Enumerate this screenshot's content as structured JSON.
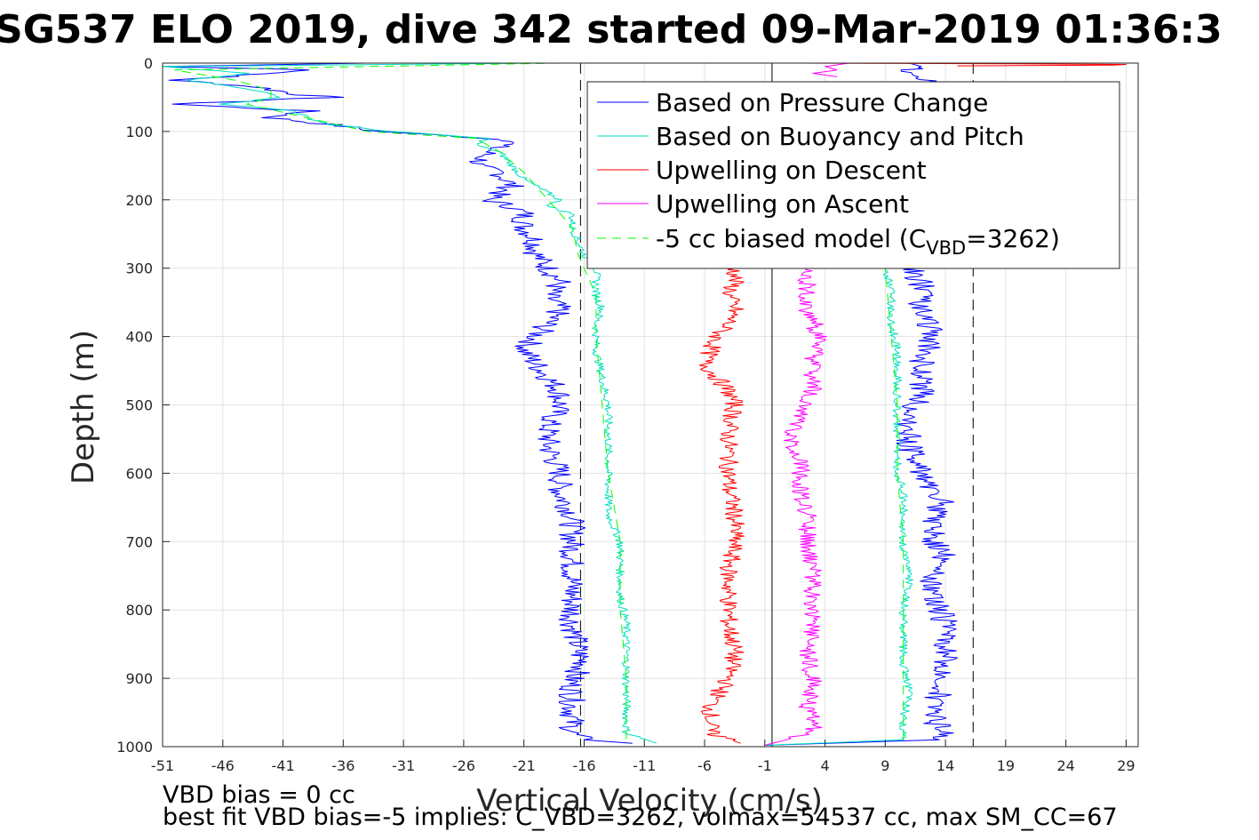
{
  "figure": {
    "title": "SG537 ELO 2019, dive 342 started 09-Mar-2019 01:36:3",
    "footer_line1": "VBD bias = 0 cc",
    "footer_line2": "best fit VBD bias=-5 implies: C_VBD=3262, volmax=54537 cc, max SM_CC=67"
  },
  "legend": {
    "placement": "top-right",
    "entries": [
      {
        "label": "Based on Pressure Change",
        "color": "#0000ff"
      },
      {
        "label": "Based on Buoyancy and Pitch",
        "color": "#00e0c0"
      },
      {
        "label": "Upwelling on Descent",
        "color": "#ff0000"
      },
      {
        "label": "Upwelling on Ascent",
        "color": "#ff00ff"
      },
      {
        "label_main": "-5 cc biased model (C",
        "label_sub": "VBD",
        "label_end": "=3262)",
        "color": "#00ff00",
        "dashed": true
      }
    ]
  },
  "chart_data": {
    "type": "line",
    "xlabel": "Vertical Velocity (cm/s)",
    "ylabel": "Depth (m)",
    "xlim": [
      -51,
      30
    ],
    "ylim": [
      0,
      1000
    ],
    "y_reversed": true,
    "grid": true,
    "xticks": [
      -51,
      -46,
      -41,
      -36,
      -31,
      -26,
      -21,
      -16,
      -11,
      -6,
      -1,
      4,
      9,
      14,
      19,
      24,
      29
    ],
    "yticks": [
      0,
      100,
      200,
      300,
      400,
      500,
      600,
      700,
      800,
      900,
      1000
    ],
    "vertical_lines": [
      {
        "x": -16.3,
        "style": "dashed",
        "color": "#000000"
      },
      {
        "x": -0.4,
        "style": "solid",
        "color": "#000000"
      },
      {
        "x": 16.3,
        "style": "dashed",
        "color": "#000000"
      }
    ],
    "series": [
      {
        "name": "Based on Pressure Change",
        "color": "#0000ff",
        "role": "descent",
        "depth": [
          0,
          5,
          10,
          25,
          35,
          45,
          50,
          60,
          70,
          80,
          90,
          100,
          110,
          115,
          120,
          130,
          150,
          160,
          180,
          200,
          210,
          220,
          240,
          260,
          280,
          300,
          320,
          340,
          360,
          380,
          400,
          420,
          440,
          460,
          480,
          500,
          530,
          560,
          600,
          630,
          660,
          700,
          740,
          780,
          820,
          860,
          880,
          900,
          940,
          980,
          990,
          995
        ],
        "velocity": [
          -34,
          -51,
          -38,
          -50,
          -43,
          -40,
          -37,
          -50,
          -39,
          -42,
          -37,
          -33,
          -24,
          -21,
          -23,
          -24,
          -25,
          -23,
          -22,
          -24,
          -22,
          -21,
          -21,
          -20,
          -20,
          -19,
          -18,
          -19,
          -18,
          -19,
          -20,
          -21,
          -20,
          -19,
          -18,
          -18,
          -19,
          -19,
          -18,
          -18,
          -17,
          -17,
          -17,
          -17,
          -17,
          -16.5,
          -16,
          -17,
          -17,
          -17,
          -16,
          -12
        ]
      },
      {
        "name": "Based on Pressure Change",
        "color": "#0000ff",
        "role": "ascent",
        "depth": [
          998,
          990,
          980,
          960,
          940,
          900,
          860,
          820,
          780,
          740,
          735,
          700,
          660,
          640,
          630,
          600,
          560,
          520,
          480,
          440,
          400,
          360,
          320,
          300,
          290,
          280,
          260,
          240,
          220,
          200,
          180,
          160,
          140,
          120,
          100,
          80,
          60,
          40,
          30,
          20,
          10,
          5,
          0
        ],
        "velocity": [
          -1,
          13.5,
          14,
          13,
          13,
          14,
          14,
          14,
          13,
          13,
          14.5,
          13,
          13,
          14,
          13,
          12,
          11,
          11,
          12,
          12,
          13,
          12,
          12,
          11,
          11,
          12,
          12,
          12,
          11,
          12,
          11,
          11,
          11,
          12,
          12,
          11,
          11,
          11,
          12,
          12.5,
          11,
          12,
          11
        ]
      },
      {
        "name": "Based on Buoyancy and Pitch",
        "color": "#00e0c0",
        "role": "descent",
        "depth": [
          0,
          5,
          15,
          25,
          35,
          45,
          50,
          60,
          70,
          80,
          90,
          100,
          110,
          120,
          130,
          150,
          170,
          190,
          200,
          210,
          220,
          240,
          260,
          280,
          300,
          320,
          340,
          360,
          380,
          400,
          420,
          460,
          500,
          540,
          580,
          620,
          660,
          700,
          740,
          780,
          820,
          860,
          900,
          940,
          980,
          995
        ],
        "velocity": [
          -20,
          -51,
          -44,
          -49,
          -45,
          -42,
          -41,
          -46,
          -40,
          -39,
          -37,
          -32,
          -24,
          -25,
          -23,
          -22,
          -21,
          -19,
          -18,
          -19,
          -17,
          -17,
          -16.5,
          -16,
          -15,
          -15,
          -15,
          -14.5,
          -15,
          -15,
          -15,
          -14.5,
          -14,
          -14,
          -14,
          -14,
          -14,
          -13,
          -13,
          -13,
          -12.5,
          -12.5,
          -12.5,
          -12.5,
          -12.5,
          -10
        ]
      },
      {
        "name": "Based on Buoyancy and Pitch",
        "color": "#00e0c0",
        "role": "ascent",
        "depth": [
          998,
          990,
          960,
          920,
          880,
          840,
          800,
          760,
          740,
          720,
          700,
          660,
          620,
          600,
          580,
          540,
          500,
          460,
          420,
          380,
          340,
          320,
          310,
          300
        ],
        "velocity": [
          -1,
          10.5,
          10.5,
          11,
          10.5,
          10.5,
          10.5,
          11,
          11,
          10.5,
          10.5,
          10.5,
          10.5,
          10,
          10,
          10,
          10,
          10,
          10,
          9.5,
          9.5,
          9.5,
          9,
          9
        ]
      },
      {
        "name": "Upwelling on Descent",
        "color": "#ff0000",
        "role": "deep",
        "depth": [
          300,
          320,
          340,
          360,
          380,
          400,
          420,
          440,
          460,
          480,
          500,
          540,
          580,
          620,
          660,
          700,
          740,
          780,
          820,
          860,
          900,
          940,
          980,
          995
        ],
        "velocity": [
          -3.5,
          -3.5,
          -4,
          -3.5,
          -4,
          -5,
          -5.5,
          -6,
          -5,
          -4,
          -3.5,
          -4,
          -4,
          -4,
          -3.5,
          -3.5,
          -4,
          -4,
          -4,
          -3.5,
          -4,
          -5.5,
          -5.5,
          -3
        ]
      },
      {
        "name": "Upwelling on Descent",
        "color": "#ff0000",
        "role": "surface",
        "depth": [
          0,
          1,
          2,
          3,
          4
        ],
        "velocity": [
          2,
          20,
          29,
          28,
          15
        ]
      },
      {
        "name": "Upwelling on Ascent",
        "color": "#ff00ff",
        "role": "deep",
        "depth": [
          998,
          980,
          960,
          940,
          900,
          860,
          820,
          780,
          740,
          700,
          660,
          620,
          600,
          560,
          540,
          520,
          480,
          440,
          400,
          360,
          340,
          320,
          300
        ],
        "velocity": [
          -1,
          3,
          3,
          2.5,
          3,
          2.5,
          3,
          3,
          3,
          2.5,
          2.5,
          2,
          2,
          1.5,
          1,
          2,
          3,
          3,
          3.5,
          2.5,
          2.5,
          2.5,
          2.5
        ]
      },
      {
        "name": "Upwelling on Ascent",
        "color": "#ff00ff",
        "role": "surface",
        "depth": [
          0,
          5,
          10,
          15,
          20
        ],
        "velocity": [
          6,
          4,
          5,
          3,
          5
        ]
      },
      {
        "name": "-5 cc biased model (C_VBD=3262)",
        "color": "#00ff00",
        "dashed": true,
        "role": "descent",
        "depth": [
          0,
          10,
          25,
          40,
          50,
          60,
          80,
          100,
          110,
          130,
          160,
          200,
          240,
          280,
          300,
          340,
          400,
          500,
          600,
          700,
          800,
          900,
          990
        ],
        "velocity": [
          -18,
          -50,
          -45,
          -42,
          -42,
          -44,
          -39,
          -34,
          -25,
          -23,
          -21,
          -19,
          -17,
          -16.5,
          -16,
          -15,
          -15,
          -14.5,
          -14,
          -13,
          -13,
          -12.5,
          -12.5
        ]
      },
      {
        "name": "-5 cc biased model (C_VBD=3262)",
        "color": "#00ff00",
        "dashed": true,
        "role": "ascent",
        "depth": [
          990,
          900,
          800,
          700,
          600,
          500,
          400,
          300
        ],
        "velocity": [
          10.5,
          10.5,
          10.5,
          10.5,
          10,
          10,
          9.5,
          9
        ]
      }
    ]
  }
}
